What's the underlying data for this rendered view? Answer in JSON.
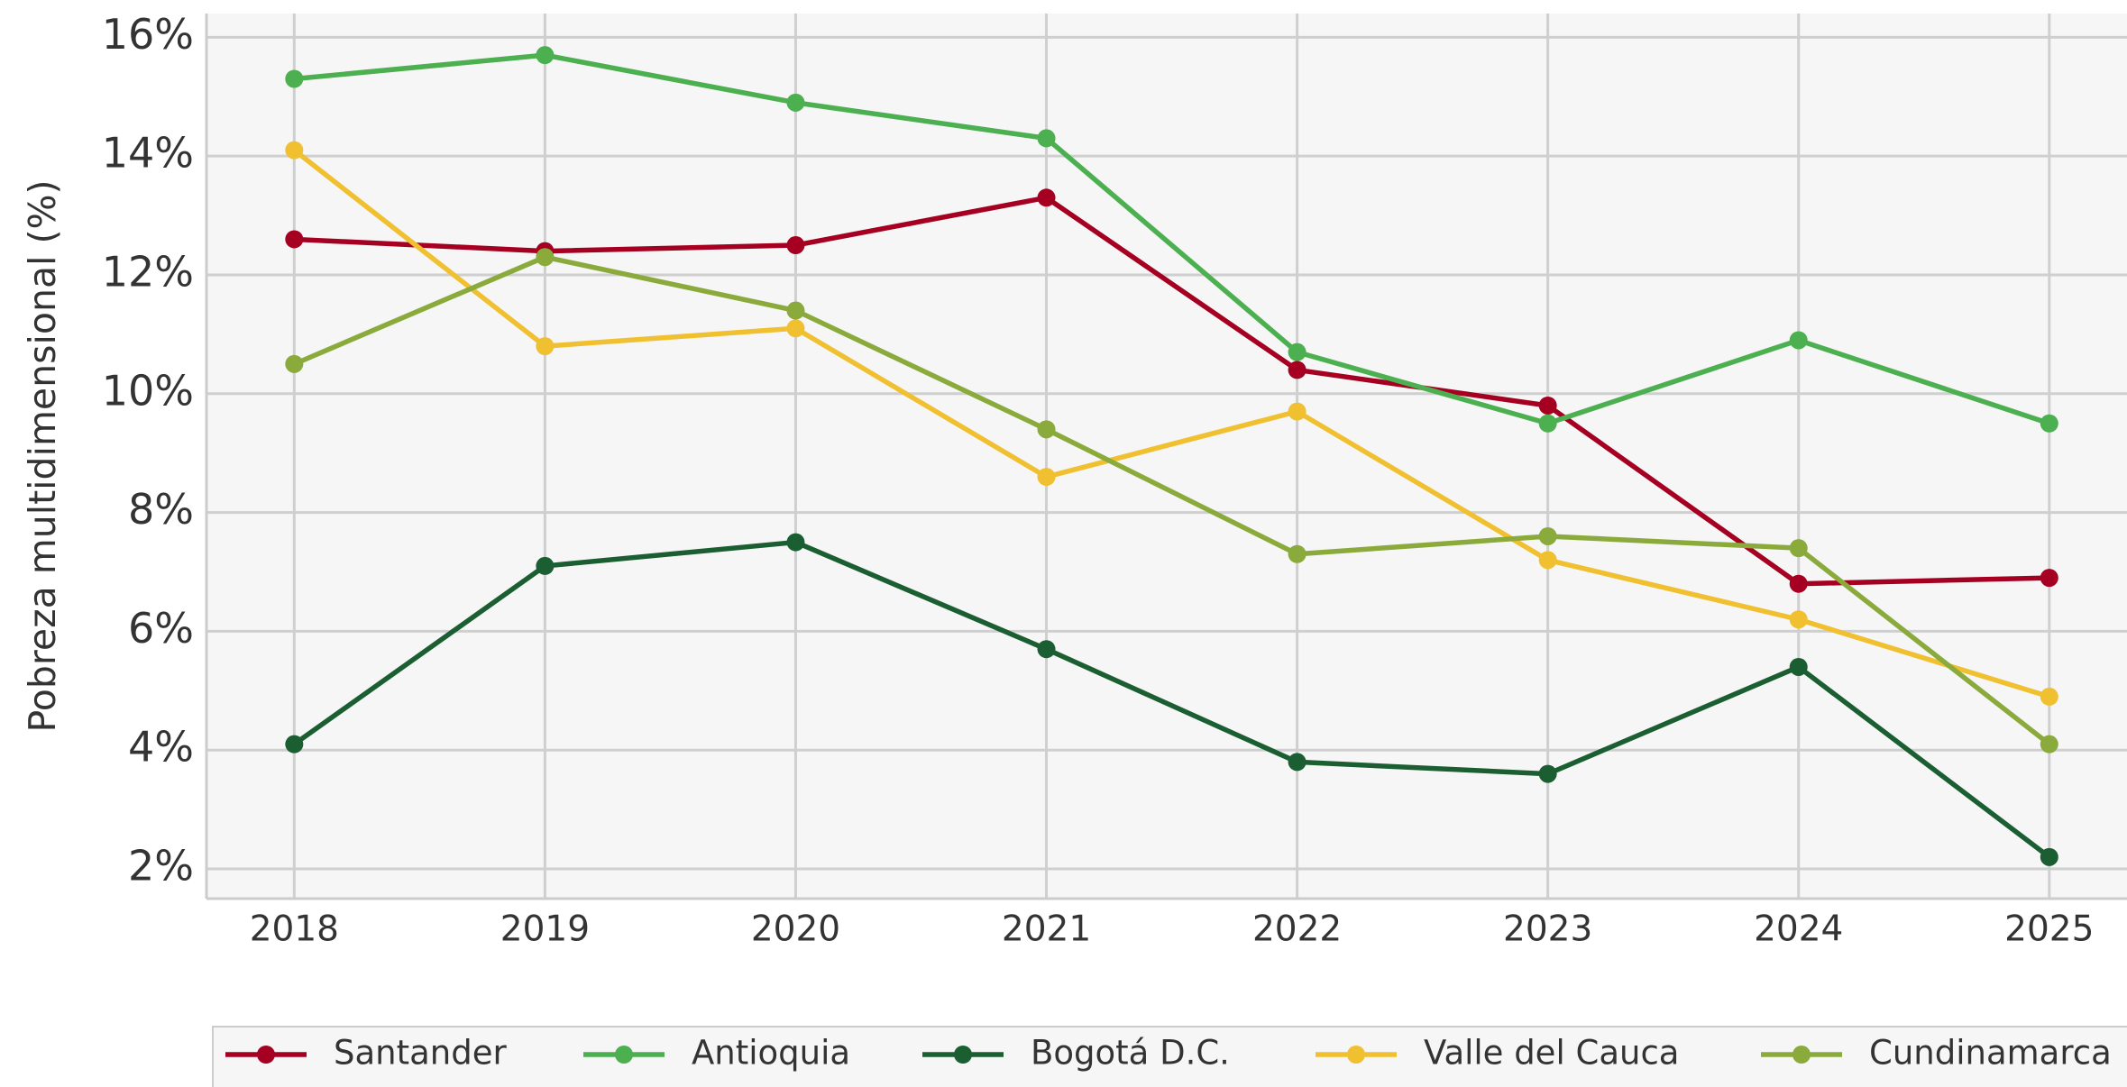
{
  "chart_data": {
    "type": "line",
    "ylabel": "Pobreza multidimensional (%)",
    "x": [
      2018,
      2019,
      2020,
      2021,
      2022,
      2023,
      2024,
      2025
    ],
    "xlim": [
      2017.65,
      2025.31
    ],
    "xticks": [
      2018,
      2019,
      2020,
      2021,
      2022,
      2023,
      2024,
      2025
    ],
    "ylim": [
      1.5,
      16.4
    ],
    "yticks": [
      {
        "value": 2,
        "label": "2%"
      },
      {
        "value": 4,
        "label": "4%"
      },
      {
        "value": 6,
        "label": "6%"
      },
      {
        "value": 8,
        "label": "8%"
      },
      {
        "value": 10,
        "label": "10%"
      },
      {
        "value": 12,
        "label": "12%"
      },
      {
        "value": 14,
        "label": "14%"
      },
      {
        "value": 16,
        "label": "16%"
      }
    ],
    "grid": true,
    "legend": "bottom",
    "series": [
      {
        "name": "Santander",
        "color": "#a50021",
        "values": [
          12.6,
          12.4,
          12.5,
          13.3,
          10.4,
          9.8,
          6.8,
          6.9
        ]
      },
      {
        "name": "Antioquia",
        "color": "#4caf50",
        "values": [
          15.3,
          15.7,
          14.9,
          14.3,
          10.7,
          9.5,
          10.9,
          9.5
        ]
      },
      {
        "name": "Bogotá D.C.",
        "color": "#1b5e32",
        "values": [
          4.1,
          7.1,
          7.5,
          5.7,
          3.8,
          3.6,
          5.4,
          2.2
        ]
      },
      {
        "name": "Valle del Cauca",
        "color": "#f0c030",
        "values": [
          14.1,
          10.8,
          11.1,
          8.6,
          9.7,
          7.2,
          6.2,
          4.9
        ]
      },
      {
        "name": "Cundinamarca",
        "color": "#8aab3c",
        "values": [
          10.5,
          12.3,
          11.4,
          9.4,
          7.3,
          7.6,
          7.4,
          4.1
        ]
      }
    ]
  }
}
